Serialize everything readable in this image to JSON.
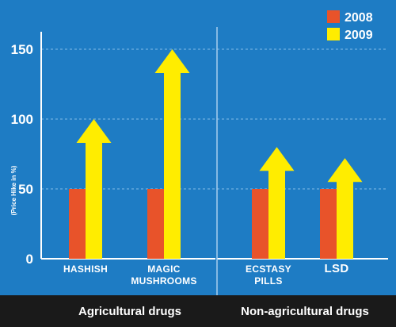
{
  "chart_data": {
    "type": "bar",
    "categories": [
      {
        "lines": [
          "HASHISH"
        ],
        "group": 0
      },
      {
        "lines": [
          "MAGIC",
          "MUSHROOMS"
        ],
        "group": 0
      },
      {
        "lines": [
          "ECSTASY",
          "PILLS"
        ],
        "group": 1
      },
      {
        "lines": [
          "LSD"
        ],
        "group": 1
      }
    ],
    "series": [
      {
        "name": "2008",
        "values": [
          50,
          50,
          50,
          50
        ],
        "color": "#e8532a",
        "shape": "bar"
      },
      {
        "name": "2009",
        "values": [
          100,
          150,
          80,
          72
        ],
        "color": "#ffed00",
        "shape": "arrow"
      }
    ],
    "groups": [
      "Agricultural drugs",
      "Non-agricultural drugs"
    ],
    "ylabel": "(Price Hike in %)",
    "yticks": [
      0,
      50,
      100,
      150
    ],
    "ylim": [
      0,
      160
    ],
    "grid": true,
    "legend_position": "top-right",
    "colors": {
      "background": "#1e7cc4",
      "footer": "#1a1a1a",
      "grid": "#6fb0e0"
    }
  }
}
